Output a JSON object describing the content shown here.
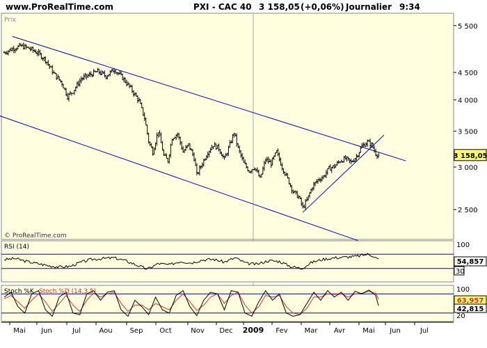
{
  "header": {
    "site": "www.ProRealTime.com",
    "instrument": "PXI - CAC 40",
    "quote": "3 158,05",
    "change": "(+0,06%)",
    "period": "Journalier",
    "time": "9:34"
  },
  "colors": {
    "background": "#ffffe0",
    "frame": "#888888",
    "bars": "#000000",
    "trendlines": "#0000cc",
    "price_box": "#ffff66",
    "stoch_k": "#000000",
    "stoch_d": "#d03030",
    "level_lines": "#0000cc"
  },
  "chart_data": [
    {
      "type": "ohlc",
      "panel": "price",
      "label": "Prix",
      "watermark": "© ProRealTime.com",
      "scale": "log",
      "ylim": [
        2200,
        5800
      ],
      "y_ticks": [
        {
          "value": 2500,
          "label": "2 500"
        },
        {
          "value": 3000,
          "label": "3 000"
        },
        {
          "value": 3500,
          "label": "3 500"
        },
        {
          "value": 4000,
          "label": "4 000"
        },
        {
          "value": 4500,
          "label": "4 500"
        },
        {
          "value": 5500,
          "label": "5 500"
        }
      ],
      "last_price_label": "3 158,05",
      "last_price": 3158,
      "x_labels": [
        "Mai",
        "Jun",
        "Jul",
        "Aou",
        "Sep",
        "Oct",
        "Nov",
        "Dec",
        "2009",
        "Fev",
        "Mar",
        "Avr",
        "Mai",
        "Jun",
        "Jul"
      ],
      "series_close": [
        [
          0,
          4900
        ],
        [
          6,
          4980
        ],
        [
          12,
          5040
        ],
        [
          18,
          4990
        ],
        [
          24,
          4900
        ],
        [
          30,
          4750
        ],
        [
          36,
          4480
        ],
        [
          42,
          4300
        ],
        [
          46,
          4060
        ],
        [
          50,
          4150
        ],
        [
          56,
          4380
        ],
        [
          62,
          4450
        ],
        [
          68,
          4520
        ],
        [
          74,
          4430
        ],
        [
          80,
          4560
        ],
        [
          86,
          4400
        ],
        [
          92,
          4200
        ],
        [
          98,
          3980
        ],
        [
          102,
          3700
        ],
        [
          105,
          3350
        ],
        [
          108,
          3200
        ],
        [
          112,
          3500
        ],
        [
          116,
          3150
        ],
        [
          119,
          3080
        ],
        [
          122,
          3400
        ],
        [
          126,
          3460
        ],
        [
          130,
          3200
        ],
        [
          134,
          3300
        ],
        [
          138,
          3120
        ],
        [
          140,
          2900
        ],
        [
          144,
          3050
        ],
        [
          148,
          3200
        ],
        [
          152,
          3300
        ],
        [
          156,
          3250
        ],
        [
          160,
          3100
        ],
        [
          164,
          3300
        ],
        [
          167,
          3480
        ],
        [
          170,
          3250
        ],
        [
          174,
          3050
        ],
        [
          178,
          2950
        ],
        [
          182,
          3000
        ],
        [
          186,
          2850
        ],
        [
          190,
          3100
        ],
        [
          194,
          3050
        ],
        [
          198,
          3200
        ],
        [
          202,
          3000
        ],
        [
          206,
          2850
        ],
        [
          210,
          2700
        ],
        [
          214,
          2640
        ],
        [
          217,
          2520
        ],
        [
          220,
          2600
        ],
        [
          224,
          2760
        ],
        [
          228,
          2840
        ],
        [
          232,
          2880
        ],
        [
          236,
          2980
        ],
        [
          240,
          3010
        ],
        [
          244,
          3080
        ],
        [
          248,
          3110
        ],
        [
          252,
          3060
        ],
        [
          256,
          3140
        ],
        [
          260,
          3280
        ],
        [
          264,
          3340
        ],
        [
          267,
          3300
        ],
        [
          270,
          3180
        ],
        [
          272,
          3158
        ]
      ],
      "trendlines": [
        {
          "name": "upper-channel",
          "from": [
            6,
            5250
          ],
          "to": [
            292,
            3080
          ]
        },
        {
          "name": "lower-channel",
          "from": [
            -5,
            3750
          ],
          "to": [
            282,
            2080
          ]
        },
        {
          "name": "support",
          "from": [
            217,
            2470
          ],
          "to": [
            276,
            3440
          ]
        }
      ]
    },
    {
      "type": "line",
      "panel": "rsi",
      "label": "RSI (14)",
      "ylim": [
        0,
        100
      ],
      "y_ticks": [
        {
          "value": 100,
          "label": "100"
        },
        {
          "value": 30,
          "label": "30"
        }
      ],
      "levels": [
        70,
        30
      ],
      "last_value_label": "54,857",
      "series": [
        [
          0,
          55
        ],
        [
          8,
          58
        ],
        [
          16,
          50
        ],
        [
          24,
          44
        ],
        [
          32,
          38
        ],
        [
          40,
          34
        ],
        [
          48,
          36
        ],
        [
          56,
          48
        ],
        [
          64,
          56
        ],
        [
          72,
          58
        ],
        [
          80,
          60
        ],
        [
          88,
          52
        ],
        [
          96,
          40
        ],
        [
          104,
          28
        ],
        [
          112,
          44
        ],
        [
          120,
          40
        ],
        [
          128,
          50
        ],
        [
          136,
          46
        ],
        [
          144,
          54
        ],
        [
          152,
          56
        ],
        [
          160,
          48
        ],
        [
          168,
          60
        ],
        [
          176,
          44
        ],
        [
          184,
          42
        ],
        [
          192,
          52
        ],
        [
          200,
          50
        ],
        [
          208,
          36
        ],
        [
          216,
          30
        ],
        [
          224,
          48
        ],
        [
          232,
          56
        ],
        [
          240,
          60
        ],
        [
          248,
          62
        ],
        [
          256,
          64
        ],
        [
          264,
          70
        ],
        [
          268,
          66
        ],
        [
          272,
          55
        ]
      ]
    },
    {
      "type": "line",
      "panel": "stochastic",
      "label": "Stoch %K",
      "label_d": "Stoch %D (14,3,5)",
      "ylim": [
        0,
        100
      ],
      "y_ticks": [
        {
          "value": 100,
          "label": "100"
        },
        {
          "value": 20,
          "label": "20"
        }
      ],
      "levels": [
        80,
        20
      ],
      "last_values": [
        {
          "name": "d",
          "label": "63,957"
        },
        {
          "name": "k",
          "label": "42,815"
        }
      ],
      "k": [
        [
          0,
          70
        ],
        [
          5,
          85
        ],
        [
          10,
          40
        ],
        [
          15,
          20
        ],
        [
          20,
          80
        ],
        [
          25,
          90
        ],
        [
          30,
          30
        ],
        [
          35,
          10
        ],
        [
          40,
          70
        ],
        [
          45,
          85
        ],
        [
          50,
          20
        ],
        [
          55,
          15
        ],
        [
          60,
          80
        ],
        [
          65,
          90
        ],
        [
          70,
          60
        ],
        [
          75,
          85
        ],
        [
          80,
          90
        ],
        [
          85,
          30
        ],
        [
          90,
          10
        ],
        [
          95,
          60
        ],
        [
          100,
          40
        ],
        [
          105,
          15
        ],
        [
          110,
          70
        ],
        [
          115,
          30
        ],
        [
          120,
          20
        ],
        [
          125,
          75
        ],
        [
          130,
          90
        ],
        [
          135,
          40
        ],
        [
          140,
          12
        ],
        [
          145,
          60
        ],
        [
          150,
          85
        ],
        [
          155,
          80
        ],
        [
          160,
          30
        ],
        [
          165,
          90
        ],
        [
          170,
          85
        ],
        [
          175,
          20
        ],
        [
          180,
          10
        ],
        [
          185,
          55
        ],
        [
          190,
          90
        ],
        [
          195,
          60
        ],
        [
          200,
          80
        ],
        [
          205,
          20
        ],
        [
          210,
          10
        ],
        [
          215,
          15
        ],
        [
          220,
          50
        ],
        [
          225,
          85
        ],
        [
          230,
          60
        ],
        [
          235,
          90
        ],
        [
          240,
          70
        ],
        [
          245,
          85
        ],
        [
          250,
          60
        ],
        [
          255,
          88
        ],
        [
          260,
          80
        ],
        [
          265,
          92
        ],
        [
          270,
          75
        ],
        [
          272,
          43
        ]
      ],
      "d": [
        [
          0,
          65
        ],
        [
          5,
          75
        ],
        [
          10,
          55
        ],
        [
          15,
          35
        ],
        [
          20,
          60
        ],
        [
          25,
          80
        ],
        [
          30,
          55
        ],
        [
          35,
          25
        ],
        [
          40,
          50
        ],
        [
          45,
          75
        ],
        [
          50,
          45
        ],
        [
          55,
          25
        ],
        [
          60,
          60
        ],
        [
          65,
          82
        ],
        [
          70,
          70
        ],
        [
          75,
          80
        ],
        [
          80,
          85
        ],
        [
          85,
          50
        ],
        [
          90,
          25
        ],
        [
          95,
          45
        ],
        [
          100,
          45
        ],
        [
          105,
          30
        ],
        [
          110,
          50
        ],
        [
          115,
          40
        ],
        [
          120,
          30
        ],
        [
          125,
          60
        ],
        [
          130,
          80
        ],
        [
          135,
          55
        ],
        [
          140,
          28
        ],
        [
          145,
          45
        ],
        [
          150,
          70
        ],
        [
          155,
          80
        ],
        [
          160,
          50
        ],
        [
          165,
          75
        ],
        [
          170,
          85
        ],
        [
          175,
          45
        ],
        [
          180,
          20
        ],
        [
          185,
          40
        ],
        [
          190,
          75
        ],
        [
          195,
          70
        ],
        [
          200,
          75
        ],
        [
          205,
          40
        ],
        [
          210,
          20
        ],
        [
          215,
          15
        ],
        [
          220,
          35
        ],
        [
          225,
          70
        ],
        [
          230,
          70
        ],
        [
          235,
          80
        ],
        [
          240,
          78
        ],
        [
          245,
          80
        ],
        [
          250,
          70
        ],
        [
          255,
          80
        ],
        [
          260,
          82
        ],
        [
          265,
          88
        ],
        [
          270,
          82
        ],
        [
          272,
          64
        ]
      ]
    }
  ]
}
